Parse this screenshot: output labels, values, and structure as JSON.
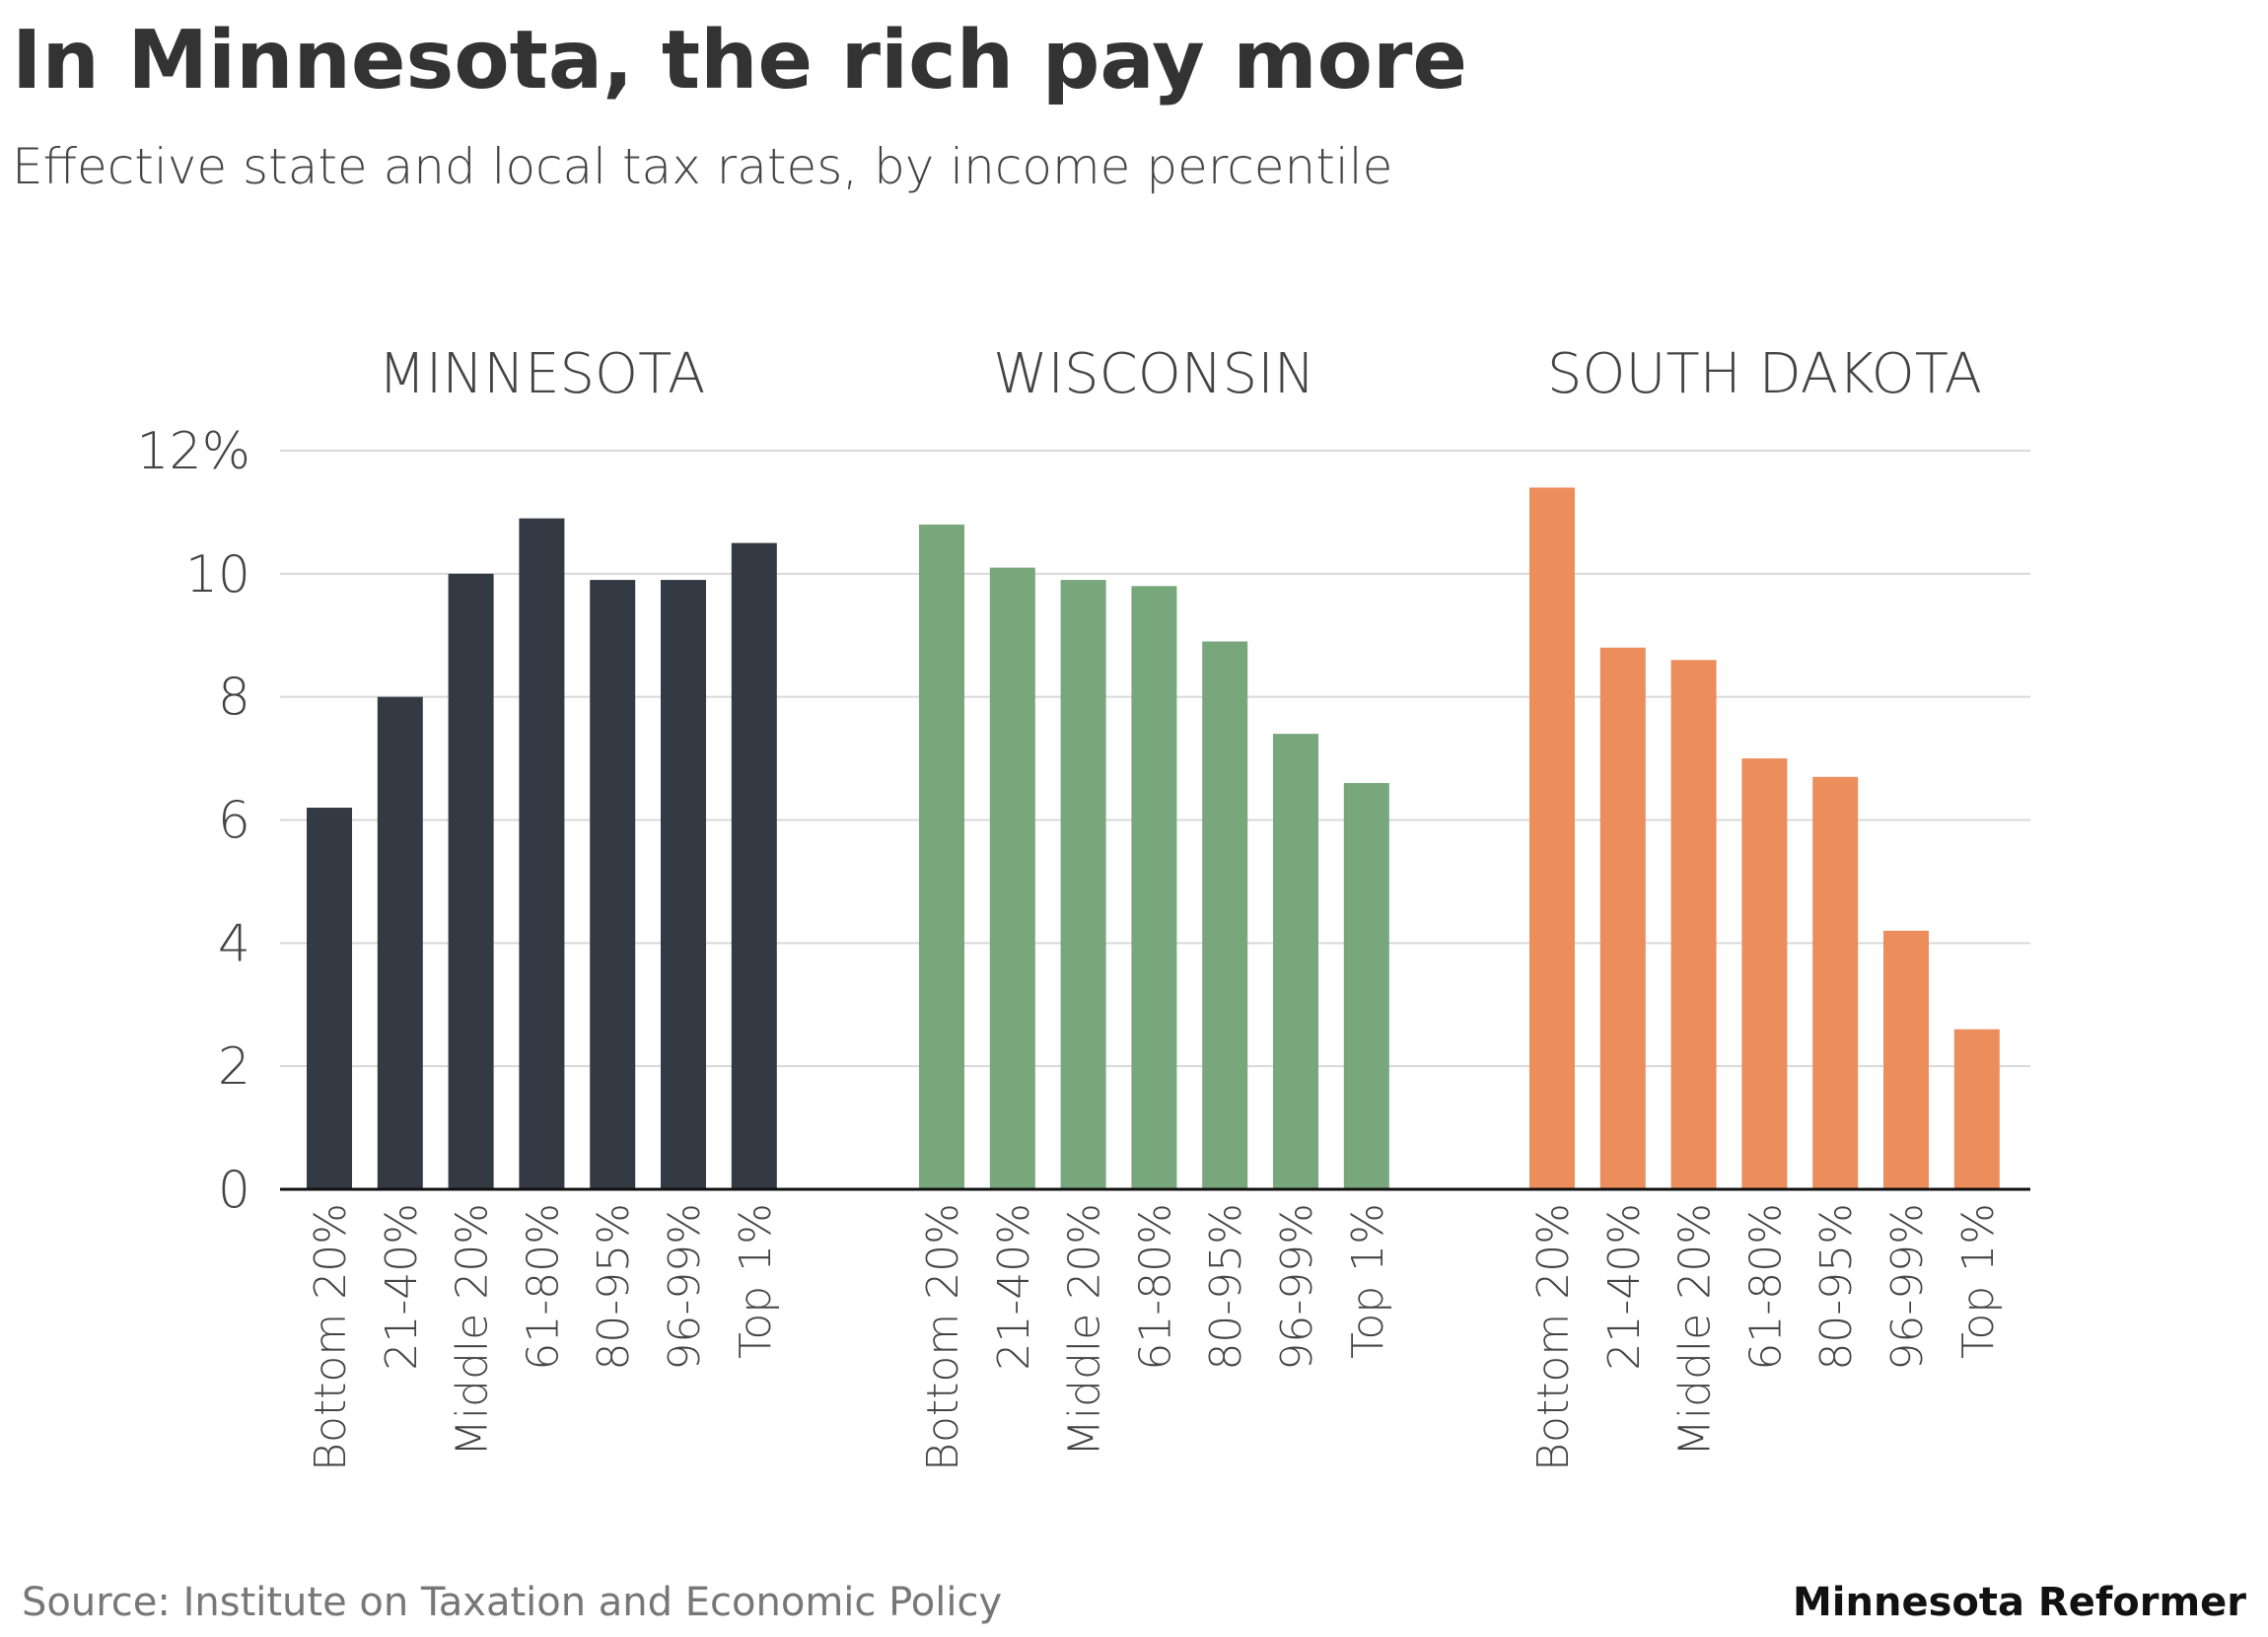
{
  "title": "In Minnesota, the rich pay more",
  "subtitle": "Effective state and local tax rates, by income percentile",
  "source": "Source: Institute on Taxation and Economic Policy",
  "brand": "Minnesota Reformer",
  "chart_data": {
    "type": "bar",
    "categories": [
      "Bottom 20%",
      "21-40%",
      "Middle 20%",
      "61-80%",
      "80-95%",
      "96-99%",
      "Top 1%"
    ],
    "yticks": [
      "0",
      "2",
      "4",
      "6",
      "8",
      "10",
      "12%"
    ],
    "ylim": [
      0,
      12
    ],
    "grid": true,
    "panels": [
      {
        "name": "MINNESOTA",
        "color": "#333a44",
        "values": [
          6.2,
          8.0,
          10.0,
          10.9,
          9.9,
          9.9,
          10.5
        ]
      },
      {
        "name": "WISCONSIN",
        "color": "#78a77c",
        "values": [
          10.8,
          10.1,
          9.9,
          9.8,
          8.9,
          7.4,
          6.6
        ]
      },
      {
        "name": "SOUTH DAKOTA",
        "color": "#ec8d5c",
        "values": [
          11.4,
          8.8,
          8.6,
          7.0,
          6.7,
          4.2,
          2.6
        ]
      }
    ]
  }
}
